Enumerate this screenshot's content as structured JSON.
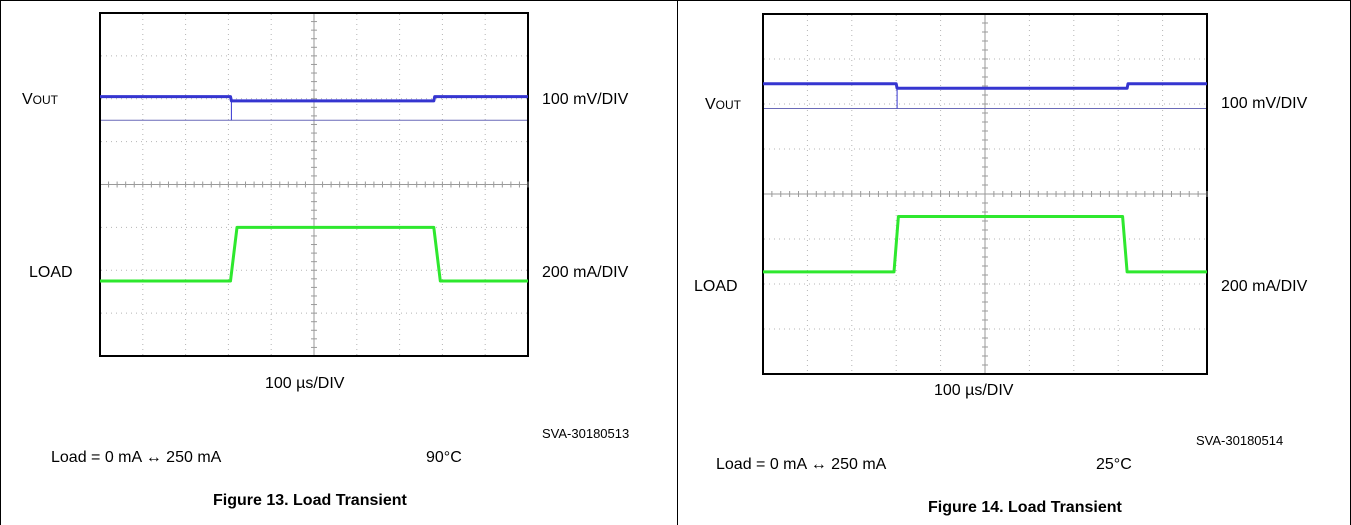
{
  "figures": [
    {
      "caption": "Figure 13. Load Transient",
      "code": "SVA-30180513",
      "condition": "Load = 0 mA ↔ 250 mA",
      "temperature": "90°C",
      "vout_label_main": "V",
      "vout_label_sub": "OUT",
      "vout_scale": "100 mV/DIV",
      "load_label": "LOAD",
      "load_scale": "200 mA/DIV",
      "time_scale": "100 µs/DIV"
    },
    {
      "caption": "Figure 14. Load Transient",
      "code": "SVA-30180514",
      "condition": "Load = 0 mA ↔ 250 mA",
      "temperature": "25°C",
      "vout_label_main": "V",
      "vout_label_sub": "OUT",
      "vout_scale": "100 mV/DIV",
      "load_label": "LOAD",
      "load_scale": "200 mA/DIV",
      "time_scale": "100 µs/DIV"
    }
  ],
  "chart_data": [
    {
      "type": "line",
      "x_unit": "div",
      "y_unit": "div",
      "xlim": [
        0,
        10
      ],
      "ylim": [
        0,
        8
      ],
      "grid": true,
      "series": [
        {
          "name": "VOUT",
          "color": "#3535d0",
          "points": [
            [
              0,
              6.05
            ],
            [
              3.05,
              6.05
            ],
            [
              3.07,
              5.95
            ],
            [
              7.8,
              5.95
            ],
            [
              7.82,
              6.05
            ],
            [
              10,
              6.05
            ]
          ]
        },
        {
          "name": "LOAD",
          "color": "#2ee82e",
          "points": [
            [
              0,
              1.75
            ],
            [
              3.05,
              1.75
            ],
            [
              3.2,
              3.0
            ],
            [
              7.8,
              3.0
            ],
            [
              7.95,
              1.75
            ],
            [
              10,
              1.75
            ]
          ]
        }
      ],
      "markers": [
        {
          "name": "VOUT reference",
          "y": 5.5
        }
      ],
      "spike": {
        "x": 3.07,
        "y_top": 6.0,
        "y_bottom": 5.5
      }
    },
    {
      "type": "line",
      "x_unit": "div",
      "y_unit": "div",
      "xlim": [
        0,
        10
      ],
      "ylim": [
        0,
        8
      ],
      "grid": true,
      "series": [
        {
          "name": "VOUT",
          "color": "#3535d0",
          "points": [
            [
              0,
              6.45
            ],
            [
              3.0,
              6.45
            ],
            [
              3.02,
              6.35
            ],
            [
              8.2,
              6.35
            ],
            [
              8.22,
              6.45
            ],
            [
              10,
              6.45
            ]
          ]
        },
        {
          "name": "LOAD",
          "color": "#2ee82e",
          "points": [
            [
              0,
              2.27
            ],
            [
              2.95,
              2.27
            ],
            [
              3.05,
              3.5
            ],
            [
              8.1,
              3.5
            ],
            [
              8.2,
              2.27
            ],
            [
              10,
              2.27
            ]
          ]
        }
      ],
      "markers": [
        {
          "name": "VOUT reference",
          "y": 5.9
        }
      ],
      "spike": {
        "x": 3.02,
        "y_top": 6.4,
        "y_bottom": 5.9
      }
    }
  ]
}
